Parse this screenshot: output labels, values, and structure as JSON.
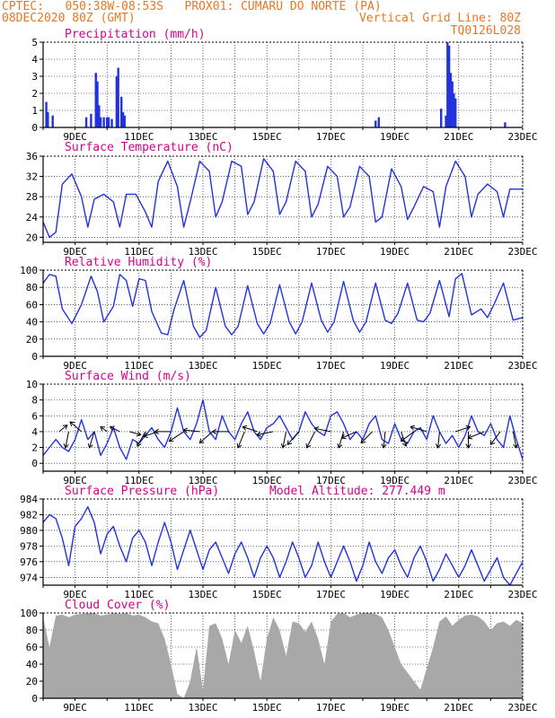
{
  "header": {
    "line1_left": "CPTEC:   050:38W-08:53S   PROX01: CUMARU DO NORTE (PA)",
    "line2_left": "08DEC2020 80Z (GMT)",
    "line2_right": "Vertical Grid Line: 80Z",
    "line3_right": "TQ0126L028",
    "color": "#e87722"
  },
  "colors": {
    "line": "#2233dd",
    "title": "#d6008f",
    "bar": "#2233dd",
    "cloud": "#a8a8a8",
    "wind": "#000000"
  },
  "x_ticks": [
    "9DEC",
    "11DEC",
    "13DEC",
    "15DEC",
    "17DEC",
    "19DEC",
    "21DEC",
    "23DEC"
  ],
  "x_range_days": [
    8.0,
    23.0
  ],
  "model_altitude": "Model Altitude: 277.449  m",
  "chart_data": [
    {
      "id": "precip",
      "type": "bar",
      "title": "Precipitation (mm/h)",
      "ylim": [
        0,
        5
      ],
      "yticks": [
        0,
        1,
        2,
        3,
        4,
        5
      ],
      "x": [
        8.1,
        8.15,
        8.3,
        9.35,
        9.5,
        9.65,
        9.7,
        9.75,
        9.8,
        9.9,
        10.0,
        10.05,
        10.15,
        10.3,
        10.35,
        10.45,
        10.5,
        10.55,
        18.4,
        18.5,
        20.45,
        20.6,
        20.65,
        20.7,
        20.75,
        20.8,
        20.85,
        20.9,
        22.45
      ],
      "values": [
        1.5,
        0.9,
        0.7,
        0.6,
        0.8,
        3.2,
        2.7,
        1.3,
        0.6,
        0.6,
        0.6,
        0.6,
        0.5,
        3.0,
        3.5,
        1.8,
        0.9,
        0.7,
        0.4,
        0.6,
        1.1,
        0.7,
        5.0,
        4.8,
        3.2,
        2.7,
        2.0,
        1.7,
        0.3
      ]
    },
    {
      "id": "temp",
      "type": "line",
      "title": "Surface Temperature (nC)",
      "ylim": [
        19,
        36
      ],
      "yticks": [
        20,
        24,
        28,
        32,
        36
      ],
      "x": [
        8.0,
        8.2,
        8.4,
        8.6,
        8.9,
        9.2,
        9.4,
        9.6,
        9.9,
        10.2,
        10.4,
        10.6,
        10.9,
        11.2,
        11.4,
        11.6,
        11.9,
        12.2,
        12.4,
        12.6,
        12.9,
        13.2,
        13.4,
        13.6,
        13.9,
        14.2,
        14.4,
        14.6,
        14.9,
        15.2,
        15.4,
        15.6,
        15.9,
        16.2,
        16.4,
        16.6,
        16.9,
        17.2,
        17.4,
        17.6,
        17.9,
        18.2,
        18.4,
        18.6,
        18.9,
        19.2,
        19.4,
        19.6,
        19.9,
        20.2,
        20.4,
        20.6,
        20.9,
        21.2,
        21.4,
        21.6,
        21.9,
        22.2,
        22.4,
        22.6,
        23.0
      ],
      "values": [
        23.0,
        20.0,
        21.0,
        30.5,
        32.5,
        28.0,
        22.0,
        27.5,
        28.5,
        27.0,
        22.0,
        28.5,
        28.5,
        25.0,
        22.0,
        31.0,
        35.0,
        30.0,
        22.0,
        27.0,
        35.0,
        33.0,
        24.0,
        27.0,
        35.0,
        34.0,
        24.5,
        27.0,
        35.5,
        33.0,
        24.5,
        27.0,
        35.0,
        33.0,
        24.0,
        26.5,
        34.0,
        32.0,
        24.0,
        26.0,
        34.0,
        32.0,
        23.0,
        24.0,
        33.5,
        30.0,
        23.5,
        26.0,
        30.0,
        29.0,
        22.0,
        30.0,
        35.0,
        32.0,
        24.0,
        28.5,
        30.5,
        29.0,
        24.0,
        29.5,
        29.5
      ]
    },
    {
      "id": "rh",
      "type": "line",
      "title": "Relative Humidity (%)",
      "ylim": [
        0,
        100
      ],
      "yticks": [
        0,
        20,
        40,
        60,
        80,
        100
      ],
      "x": [
        8.0,
        8.2,
        8.4,
        8.6,
        8.9,
        9.2,
        9.5,
        9.7,
        9.9,
        10.2,
        10.4,
        10.6,
        10.8,
        11.0,
        11.2,
        11.4,
        11.7,
        11.9,
        12.1,
        12.4,
        12.7,
        12.9,
        13.1,
        13.4,
        13.7,
        13.9,
        14.1,
        14.4,
        14.7,
        14.9,
        15.1,
        15.4,
        15.7,
        15.9,
        16.1,
        16.4,
        16.7,
        16.9,
        17.1,
        17.4,
        17.7,
        17.9,
        18.1,
        18.4,
        18.7,
        18.9,
        19.1,
        19.4,
        19.7,
        19.9,
        20.1,
        20.4,
        20.7,
        20.9,
        21.1,
        21.4,
        21.7,
        21.9,
        22.1,
        22.4,
        22.7,
        23.0
      ],
      "values": [
        85.0,
        95.0,
        93.0,
        55.0,
        38.0,
        60.0,
        93.0,
        75.0,
        40.0,
        58.0,
        95.0,
        88.0,
        58.0,
        90.0,
        88.0,
        52.0,
        27.0,
        25.0,
        55.0,
        88.0,
        35.0,
        22.0,
        30.0,
        80.0,
        35.0,
        25.0,
        35.0,
        82.0,
        38.0,
        26.0,
        38.0,
        83.0,
        40.0,
        26.0,
        40.0,
        85.0,
        42.0,
        28.0,
        40.0,
        87.0,
        42.0,
        28.0,
        40.0,
        85.0,
        42.0,
        38.0,
        50.0,
        85.0,
        42.0,
        40.0,
        50.0,
        88.0,
        46.0,
        90.0,
        96.0,
        48.0,
        55.0,
        45.0,
        60.0,
        85.0,
        42.0,
        45.0
      ]
    },
    {
      "id": "wind",
      "type": "line",
      "title": "Surface Wind (m/s)",
      "ylim": [
        -1,
        10
      ],
      "yticks": [
        0,
        2,
        4,
        6,
        8,
        10
      ],
      "x": [
        8.0,
        8.2,
        8.4,
        8.6,
        8.8,
        9.0,
        9.2,
        9.4,
        9.6,
        9.8,
        10.0,
        10.2,
        10.4,
        10.6,
        10.8,
        11.0,
        11.2,
        11.4,
        11.6,
        11.8,
        12.0,
        12.2,
        12.4,
        12.6,
        12.8,
        13.0,
        13.2,
        13.4,
        13.6,
        13.8,
        14.0,
        14.2,
        14.4,
        14.6,
        14.8,
        15.0,
        15.2,
        15.4,
        15.6,
        15.8,
        16.0,
        16.2,
        16.4,
        16.6,
        16.8,
        17.0,
        17.2,
        17.4,
        17.6,
        17.8,
        18.0,
        18.2,
        18.4,
        18.6,
        18.8,
        19.0,
        19.2,
        19.4,
        19.6,
        19.8,
        20.0,
        20.2,
        20.4,
        20.6,
        20.8,
        21.0,
        21.2,
        21.4,
        21.6,
        21.8,
        22.0,
        22.2,
        22.4,
        22.6,
        22.8,
        23.0
      ],
      "values": [
        1.0,
        2.0,
        3.0,
        2.0,
        1.5,
        3.0,
        5.5,
        3.0,
        4.0,
        1.0,
        2.5,
        4.5,
        2.0,
        0.5,
        3.0,
        2.5,
        3.5,
        4.5,
        3.0,
        2.0,
        4.0,
        7.0,
        4.0,
        3.0,
        5.0,
        8.0,
        4.0,
        3.0,
        6.0,
        4.0,
        3.0,
        5.0,
        6.5,
        4.0,
        3.0,
        4.5,
        5.0,
        6.0,
        4.5,
        3.0,
        4.0,
        6.5,
        5.0,
        4.0,
        3.5,
        6.0,
        6.5,
        5.0,
        3.0,
        4.0,
        3.0,
        5.0,
        6.0,
        3.0,
        2.5,
        5.0,
        3.0,
        2.5,
        4.0,
        4.5,
        3.0,
        6.0,
        4.0,
        2.5,
        3.5,
        2.0,
        3.5,
        6.0,
        4.0,
        3.5,
        5.0,
        3.0,
        2.0,
        6.0,
        3.0,
        0.5
      ],
      "vectors": [
        {
          "x": 8.5,
          "u": 0.5,
          "v": 0.4
        },
        {
          "x": 8.8,
          "u": -0.2,
          "v": -1.0
        },
        {
          "x": 9.2,
          "u": -0.7,
          "v": 0.6
        },
        {
          "x": 9.6,
          "u": -0.3,
          "v": -1.0
        },
        {
          "x": 10.0,
          "u": -0.4,
          "v": 0.3
        },
        {
          "x": 10.4,
          "u": -0.6,
          "v": 0.3
        },
        {
          "x": 10.7,
          "u": 0.7,
          "v": -0.2
        },
        {
          "x": 11.2,
          "u": -0.5,
          "v": -0.9
        },
        {
          "x": 11.6,
          "u": -0.9,
          "v": -0.3
        },
        {
          "x": 12.0,
          "u": -1.0,
          "v": 0.0
        },
        {
          "x": 12.4,
          "u": -0.9,
          "v": -0.6
        },
        {
          "x": 12.9,
          "u": -1.0,
          "v": 0.1
        },
        {
          "x": 13.3,
          "u": -0.8,
          "v": -0.7
        },
        {
          "x": 13.8,
          "u": -1.0,
          "v": 0.0
        },
        {
          "x": 14.3,
          "u": -0.4,
          "v": -1.0
        },
        {
          "x": 14.7,
          "u": -0.9,
          "v": 0.3
        },
        {
          "x": 15.2,
          "u": -1.0,
          "v": -0.2
        },
        {
          "x": 15.6,
          "u": -0.2,
          "v": -1.0
        },
        {
          "x": 16.0,
          "u": -0.7,
          "v": -0.8
        },
        {
          "x": 16.5,
          "u": -0.5,
          "v": -1.0
        },
        {
          "x": 17.0,
          "u": -1.0,
          "v": 0.2
        },
        {
          "x": 17.4,
          "u": -0.3,
          "v": -1.0
        },
        {
          "x": 17.8,
          "u": -0.9,
          "v": -0.4
        },
        {
          "x": 18.3,
          "u": -0.7,
          "v": -0.7
        },
        {
          "x": 18.7,
          "u": -0.1,
          "v": -1.0
        },
        {
          "x": 19.2,
          "u": 0.3,
          "v": -0.9
        },
        {
          "x": 19.6,
          "u": -0.8,
          "v": -0.6
        },
        {
          "x": 20.0,
          "u": -1.0,
          "v": 0.3
        },
        {
          "x": 20.4,
          "u": -0.1,
          "v": -1.0
        },
        {
          "x": 20.9,
          "u": 0.9,
          "v": 0.3
        },
        {
          "x": 21.3,
          "u": 0.0,
          "v": -1.0
        },
        {
          "x": 21.8,
          "u": -1.0,
          "v": -0.4
        },
        {
          "x": 22.3,
          "u": -0.6,
          "v": -0.8
        },
        {
          "x": 22.7,
          "u": 0.2,
          "v": -1.0
        }
      ]
    },
    {
      "id": "pres",
      "type": "line",
      "title": "Surface Pressure (hPa)",
      "ylim": [
        973,
        984
      ],
      "yticks": [
        974,
        976,
        978,
        980,
        982,
        984
      ],
      "x": [
        8.0,
        8.2,
        8.4,
        8.6,
        8.8,
        9.0,
        9.2,
        9.4,
        9.6,
        9.8,
        10.0,
        10.2,
        10.4,
        10.6,
        10.8,
        11.0,
        11.2,
        11.4,
        11.6,
        11.8,
        12.0,
        12.2,
        12.4,
        12.6,
        12.8,
        13.0,
        13.2,
        13.4,
        13.6,
        13.8,
        14.0,
        14.2,
        14.4,
        14.6,
        14.8,
        15.0,
        15.2,
        15.4,
        15.6,
        15.8,
        16.0,
        16.2,
        16.4,
        16.6,
        16.8,
        17.0,
        17.2,
        17.4,
        17.6,
        17.8,
        18.0,
        18.2,
        18.4,
        18.6,
        18.8,
        19.0,
        19.2,
        19.4,
        19.6,
        19.8,
        20.0,
        20.2,
        20.4,
        20.6,
        20.8,
        21.0,
        21.2,
        21.4,
        21.6,
        21.8,
        22.0,
        22.2,
        22.4,
        22.6,
        22.8,
        23.0
      ],
      "values": [
        981.0,
        982.0,
        981.5,
        979.0,
        975.5,
        980.5,
        981.5,
        983.0,
        981.0,
        977.0,
        979.5,
        980.5,
        978.0,
        976.0,
        979.0,
        980.0,
        978.5,
        975.5,
        978.5,
        981.0,
        978.5,
        975.0,
        977.5,
        980.0,
        977.5,
        975.0,
        977.5,
        978.5,
        976.5,
        974.5,
        977.0,
        978.5,
        976.5,
        974.0,
        976.5,
        978.0,
        976.5,
        974.0,
        976.0,
        978.5,
        976.5,
        974.0,
        975.5,
        978.5,
        976.0,
        974.0,
        976.0,
        978.0,
        976.0,
        973.5,
        975.5,
        978.5,
        976.0,
        974.5,
        976.5,
        977.5,
        975.5,
        974.0,
        976.5,
        978.0,
        976.0,
        973.5,
        975.0,
        977.0,
        975.5,
        974.0,
        975.5,
        977.5,
        975.5,
        973.5,
        975.0,
        976.5,
        974.0,
        973.0,
        974.5,
        976.0
      ]
    },
    {
      "id": "cloud",
      "type": "area",
      "title": "Cloud Cover (%)",
      "ylim": [
        0,
        100
      ],
      "yticks": [
        0,
        20,
        40,
        60,
        80,
        100
      ],
      "x": [
        8.0,
        8.2,
        8.4,
        8.6,
        8.8,
        9.0,
        9.2,
        9.4,
        9.6,
        9.8,
        10.0,
        10.2,
        10.4,
        10.6,
        10.8,
        11.0,
        11.2,
        11.4,
        11.6,
        11.8,
        12.0,
        12.2,
        12.4,
        12.6,
        12.8,
        13.0,
        13.2,
        13.4,
        13.6,
        13.8,
        14.0,
        14.2,
        14.4,
        14.6,
        14.8,
        15.0,
        15.2,
        15.4,
        15.6,
        15.8,
        16.0,
        16.2,
        16.4,
        16.6,
        16.8,
        17.0,
        17.2,
        17.4,
        17.6,
        17.8,
        18.0,
        18.2,
        18.4,
        18.6,
        18.8,
        19.0,
        19.2,
        19.4,
        19.6,
        19.8,
        20.0,
        20.2,
        20.4,
        20.6,
        20.8,
        21.0,
        21.2,
        21.4,
        21.6,
        21.8,
        22.0,
        22.2,
        22.4,
        22.6,
        22.8,
        23.0
      ],
      "values": [
        95,
        60,
        97,
        98,
        95,
        98,
        99,
        100,
        100,
        97,
        98,
        100,
        99,
        100,
        97,
        98,
        95,
        90,
        88,
        70,
        40,
        5,
        0,
        20,
        60,
        10,
        85,
        88,
        70,
        40,
        80,
        65,
        85,
        55,
        20,
        70,
        95,
        80,
        50,
        90,
        88,
        78,
        90,
        70,
        40,
        90,
        99,
        100,
        95,
        98,
        100,
        100,
        99,
        95,
        80,
        60,
        40,
        30,
        20,
        10,
        35,
        60,
        90,
        96,
        85,
        92,
        97,
        98,
        96,
        90,
        80,
        88,
        90,
        85,
        92,
        88
      ]
    }
  ]
}
